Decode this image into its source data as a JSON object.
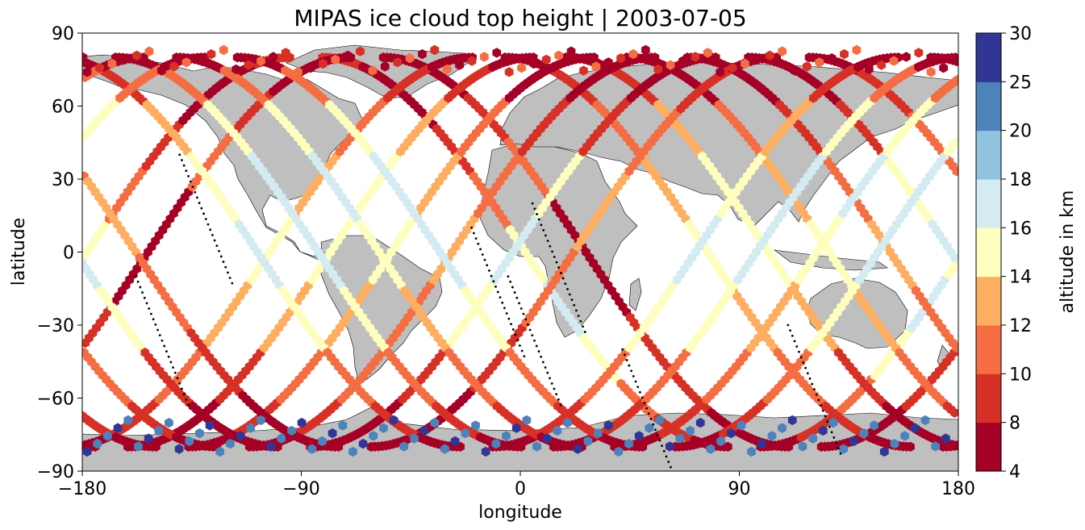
{
  "chart_data": {
    "type": "scatter",
    "title": "MIPAS ice cloud top height | 2003-07-05",
    "xlabel": "longitude",
    "ylabel": "latitude",
    "xlim": [
      -180,
      180
    ],
    "ylim": [
      -90,
      90
    ],
    "xticks": [
      -180,
      -90,
      0,
      90,
      180
    ],
    "yticks": [
      -90,
      -60,
      -30,
      0,
      30,
      60,
      90
    ],
    "xtick_labels": [
      "−180",
      "−90",
      "0",
      "90",
      "180"
    ],
    "ytick_labels": [
      "−90",
      "−60",
      "−30",
      "0",
      "30",
      "60",
      "90"
    ],
    "grid": false,
    "basemap": "world coastlines, land filled gray",
    "colorbar": {
      "label": "altitude in km",
      "boundaries": [
        4,
        8,
        10,
        12,
        14,
        16,
        18,
        20,
        25,
        30
      ],
      "tick_labels": [
        "4",
        "8",
        "10",
        "12",
        "14",
        "16",
        "18",
        "20",
        "25",
        "30"
      ],
      "colors": [
        "#a50026",
        "#d73027",
        "#f46d43",
        "#fdae61",
        "#fefebe",
        "#d4ebf2",
        "#91c3de",
        "#4e82bb",
        "#313695"
      ],
      "position": "right"
    },
    "orbits": [
      {
        "ascending_equator_lon": -178,
        "colors": [
          0,
          1,
          2,
          4,
          5,
          4,
          2,
          1,
          0,
          0,
          1
        ]
      },
      {
        "ascending_equator_lon": -153,
        "colors": [
          0,
          0,
          1,
          1,
          0,
          0,
          2,
          1,
          0,
          0
        ]
      },
      {
        "ascending_equator_lon": -103,
        "colors": [
          0,
          1,
          2,
          3,
          4,
          3,
          2,
          1,
          0
        ]
      },
      {
        "ascending_equator_lon": -78,
        "colors": [
          0,
          0,
          1,
          3,
          4,
          4,
          3,
          1,
          0
        ]
      },
      {
        "ascending_equator_lon": -53,
        "colors": [
          0,
          1,
          2,
          3,
          4,
          3,
          2,
          0,
          0
        ]
      },
      {
        "ascending_equator_lon": -28,
        "colors": [
          0,
          1,
          2,
          2,
          3,
          2,
          1,
          0,
          0
        ]
      },
      {
        "ascending_equator_lon": -3,
        "colors": [
          0,
          0,
          1,
          4,
          5,
          4,
          1,
          0,
          0
        ]
      },
      {
        "ascending_equator_lon": 22,
        "colors": [
          0,
          0,
          1,
          2,
          3,
          2,
          1,
          0
        ]
      },
      {
        "ascending_equator_lon": 72,
        "colors": [
          0,
          1,
          2,
          4,
          5,
          4,
          3,
          1,
          0
        ]
      },
      {
        "ascending_equator_lon": 97,
        "colors": [
          0,
          1,
          2,
          4,
          5,
          5,
          4,
          2,
          0
        ]
      },
      {
        "ascending_equator_lon": 122,
        "colors": [
          0,
          1,
          2,
          3,
          4,
          5,
          4,
          2,
          0
        ]
      },
      {
        "ascending_equator_lon": 147,
        "colors": [
          0,
          1,
          2,
          4,
          5,
          5,
          4,
          2,
          0
        ]
      }
    ],
    "antarctic_points": {
      "color_classes": [
        7,
        8
      ],
      "lat_range": [
        -85,
        -60
      ]
    },
    "arctic_points": {
      "color_classes": [
        0,
        1,
        2
      ],
      "lat_range": [
        72,
        88
      ]
    }
  }
}
